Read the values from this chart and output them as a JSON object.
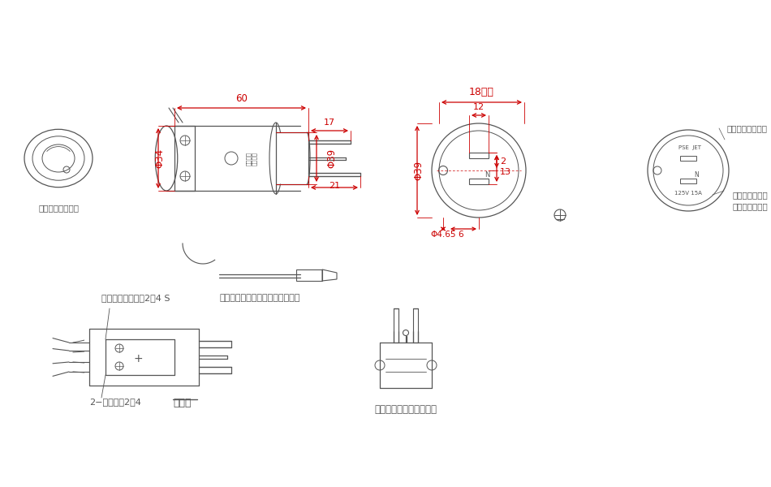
{
  "bg_color": "#ffffff",
  "lc": "#555555",
  "dc": "#cc0000",
  "annotations": {
    "earth_mark": "アースマーク表示",
    "earth_wire": "アース線　緑、黄色ストライプ線",
    "earth_terminal": "アース用圧着端子2－4 S",
    "terminal2": "2−圧着端子2－4",
    "wiring": "結線図",
    "type_2p": "２Ｐ、２ＰＥ付き兼用型",
    "elec_cert": "電気用品認証表示",
    "rating": "定格表示　刈印",
    "waterproof": "防雨形表示刈印"
  },
  "dims": {
    "d60": "60",
    "d34": "Φ34",
    "d17": "17",
    "d21": "21",
    "d39": "Φ39",
    "d18": "18以下",
    "d12": "12",
    "d2": "2",
    "d13": "13",
    "d4_65": "Φ4.65",
    "d6": "6"
  }
}
